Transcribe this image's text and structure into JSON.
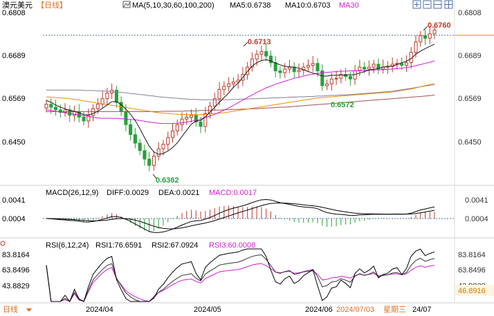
{
  "header": {
    "symbol": "澳元美元",
    "period": "【日线】",
    "ma_label": "MA(5,10,30,60,100,200)",
    "ma5": "MA5:0.6738",
    "ma10": "MA10:0.6703",
    "ma30": "MA30"
  },
  "toolbar_icons": [
    "grid-plus-icon",
    "grid-minus-icon",
    "panel-icon",
    "grid-icon"
  ],
  "colors": {
    "up": "#c0392b",
    "down": "#27a13a",
    "ma5": "#000000",
    "ma10": "#1a1a1a",
    "ma30": "#d21cd2",
    "ma60": "#f08c00",
    "ma100": "#7f7fa0",
    "ma200": "#a05050",
    "dif": "#000000",
    "dea": "#000000",
    "macd": "#d21cd2",
    "rsi3": "#d21cd2"
  },
  "main_axis": {
    "labels": [
      "0.6808",
      "0.6689",
      "0.6569",
      "0.6450"
    ],
    "ylim": [
      0.6345,
      0.6815
    ]
  },
  "annotations": {
    "high": "0.6713",
    "low": "0.6362",
    "mid_low": "0.6572",
    "last": "0.6760"
  },
  "macd": {
    "label": "MACD(26,12,9)",
    "diff": "DIFF:0.0029",
    "dea": "DEA:0.0021",
    "macd": "MACD:0.0017",
    "axis": [
      "0.0041",
      "0.0004"
    ]
  },
  "rsi": {
    "label": "RSI(6,12,24)",
    "rsi1": "RSI1:76.6591",
    "rsi2": "RSI2:67.0924",
    "rsi3": "RSI3:60.0008",
    "axis": [
      "83.8164",
      "63.8496",
      "43.8829"
    ],
    "current": "46.8916"
  },
  "footer": {
    "period": "日线",
    "dates": [
      "2024/04",
      "2024/05",
      "2024/06",
      "24/07"
    ],
    "cursor_date": "2024/07/03",
    "weekday": "星期三"
  },
  "chart_data": {
    "type": "candlestick",
    "title": "澳元美元 日线",
    "series_close": [
      0.656,
      0.6552,
      0.6545,
      0.6538,
      0.6545,
      0.653,
      0.654,
      0.6525,
      0.6515,
      0.653,
      0.6548,
      0.656,
      0.6575,
      0.659,
      0.6598,
      0.6565,
      0.654,
      0.6505,
      0.6478,
      0.6455,
      0.6435,
      0.6412,
      0.6395,
      0.642,
      0.644,
      0.6452,
      0.647,
      0.6488,
      0.6505,
      0.652,
      0.6525,
      0.653,
      0.6512,
      0.65,
      0.6535,
      0.6555,
      0.6575,
      0.66,
      0.6608,
      0.6615,
      0.662,
      0.6625,
      0.664,
      0.666,
      0.6682,
      0.6695,
      0.6702,
      0.669,
      0.6672,
      0.665,
      0.6645,
      0.6655,
      0.666,
      0.6648,
      0.6652,
      0.666,
      0.6665,
      0.667,
      0.665,
      0.661,
      0.6615,
      0.6628,
      0.663,
      0.664,
      0.6635,
      0.6628,
      0.665,
      0.666,
      0.6655,
      0.666,
      0.6668,
      0.6655,
      0.666,
      0.6662,
      0.6668,
      0.667,
      0.6665,
      0.6672,
      0.67,
      0.6728,
      0.6745,
      0.6738,
      0.675,
      0.676
    ],
    "ma10": [
      0.657,
      0.6565,
      0.6558,
      0.6552,
      0.6548,
      0.6543,
      0.6541,
      0.6537,
      0.6532,
      0.6531,
      0.6535,
      0.6541,
      0.6549,
      0.6558,
      0.6567,
      0.6567,
      0.6559,
      0.6547,
      0.6533,
      0.6516,
      0.6494,
      0.647,
      0.6447,
      0.6431,
      0.6425,
      0.6427,
      0.6434,
      0.6443,
      0.6456,
      0.6473,
      0.649,
      0.6506,
      0.6515,
      0.6516,
      0.6526,
      0.6539,
      0.6552,
      0.6565,
      0.6578,
      0.659,
      0.6606,
      0.6617,
      0.6632,
      0.6648,
      0.6663,
      0.6672,
      0.6678,
      0.668,
      0.6677,
      0.6671,
      0.6666,
      0.6662,
      0.6661,
      0.666,
      0.6657,
      0.6653,
      0.6648,
      0.6644,
      0.6641,
      0.6636,
      0.6636,
      0.6638,
      0.6638,
      0.6639,
      0.6639,
      0.6639,
      0.664,
      0.6644,
      0.6648,
      0.6652,
      0.6654,
      0.6657,
      0.666,
      0.6662,
      0.6663,
      0.6667,
      0.6672,
      0.6676,
      0.6683,
      0.6695,
      0.6703,
      0.671,
      0.6716,
      0.6722
    ],
    "ma30": [
      0.6545,
      0.6543,
      0.6541,
      0.6539,
      0.6537,
      0.6535,
      0.6533,
      0.6531,
      0.6529,
      0.6527,
      0.6525,
      0.6523,
      0.6522,
      0.6522,
      0.6522,
      0.6522,
      0.6521,
      0.652,
      0.6519,
      0.6518,
      0.6516,
      0.6514,
      0.6512,
      0.651,
      0.6509,
      0.6508,
      0.6508,
      0.6508,
      0.6509,
      0.651,
      0.6512,
      0.6514,
      0.6517,
      0.652,
      0.6524,
      0.6528,
      0.6533,
      0.6538,
      0.6544,
      0.655,
      0.6557,
      0.6564,
      0.6571,
      0.6578,
      0.6585,
      0.6592,
      0.6598,
      0.6604,
      0.6609,
      0.6614,
      0.6618,
      0.6622,
      0.6626,
      0.663,
      0.6633,
      0.6636,
      0.6639,
      0.6641,
      0.6643,
      0.6645,
      0.6646,
      0.6647,
      0.6648,
      0.6649,
      0.6649,
      0.665,
      0.665,
      0.6651,
      0.6651,
      0.6652,
      0.6652,
      0.6653,
      0.6653,
      0.6654,
      0.6655,
      0.6656,
      0.6657,
      0.6659,
      0.6661,
      0.6664,
      0.6667,
      0.667,
      0.6673,
      0.6677
    ],
    "ma60": [
      0.658,
      0.6579,
      0.6578,
      0.6577,
      0.6576,
      0.6575,
      0.6573,
      0.6571,
      0.6569,
      0.6567,
      0.6565,
      0.6563,
      0.6561,
      0.6559,
      0.6557,
      0.6555,
      0.6553,
      0.6551,
      0.6549,
      0.6547,
      0.6545,
      0.6543,
      0.6541,
      0.6539,
      0.6537,
      0.6536,
      0.6535,
      0.6534,
      0.6533,
      0.6532,
      0.6532,
      0.6532,
      0.6532,
      0.6532,
      0.6533,
      0.6534,
      0.6535,
      0.6536,
      0.6537,
      0.6539,
      0.6541,
      0.6543,
      0.6545,
      0.6547,
      0.6549,
      0.6551,
      0.6553,
      0.6555,
      0.6557,
      0.6559,
      0.6561,
      0.6563,
      0.6565,
      0.6567,
      0.6569,
      0.6571,
      0.6573,
      0.6575,
      0.6577,
      0.6578,
      0.6579,
      0.658,
      0.6581,
      0.6582,
      0.6583,
      0.6584,
      0.6585,
      0.6586,
      0.6587,
      0.6588,
      0.6589,
      0.659,
      0.6591,
      0.6592,
      0.6593,
      0.6595,
      0.6597,
      0.6599,
      0.6601,
      0.6604,
      0.6607,
      0.661,
      0.6613,
      0.6616
    ],
    "ma100": [
      0.6598,
      0.6598,
      0.6598,
      0.6598,
      0.6598,
      0.6598,
      0.6598,
      0.6598,
      0.6597,
      0.6597,
      0.6597,
      0.6596,
      0.6596,
      0.6595,
      0.6594,
      0.6593,
      0.6592,
      0.6591,
      0.6589,
      0.6588,
      0.6586,
      0.6585,
      0.6583,
      0.6582,
      0.658,
      0.6579,
      0.6578,
      0.6577,
      0.6576,
      0.6575,
      0.6574,
      0.6573,
      0.6573,
      0.6572,
      0.6572,
      0.6572,
      0.6572,
      0.6572,
      0.6572,
      0.6572,
      0.6573,
      0.6573,
      0.6574,
      0.6574,
      0.6575,
      0.6575,
      0.6576,
      0.6576,
      0.6577,
      0.6577,
      0.6578,
      0.6578,
      0.6579,
      0.6579,
      0.658,
      0.658,
      0.6581,
      0.6581,
      0.6582,
      0.6582,
      0.6583,
      0.6584,
      0.6584,
      0.6585,
      0.6585,
      0.6586,
      0.6587,
      0.6588,
      0.6589,
      0.659,
      0.6591,
      0.6592,
      0.6593,
      0.6594,
      0.6595,
      0.6597,
      0.6599,
      0.6601,
      0.6603,
      0.6605,
      0.6607,
      0.6609,
      0.6611,
      0.6613
    ],
    "ma200": [
      0.654,
      0.654,
      0.654,
      0.654,
      0.654,
      0.654,
      0.654,
      0.654,
      0.654,
      0.654,
      0.654,
      0.654,
      0.654,
      0.654,
      0.654,
      0.654,
      0.654,
      0.654,
      0.654,
      0.654,
      0.654,
      0.654,
      0.654,
      0.654,
      0.654,
      0.6541,
      0.6541,
      0.6541,
      0.6541,
      0.6541,
      0.6542,
      0.6542,
      0.6542,
      0.6543,
      0.6543,
      0.6543,
      0.6544,
      0.6544,
      0.6545,
      0.6545,
      0.6546,
      0.6546,
      0.6547,
      0.6547,
      0.6548,
      0.6548,
      0.6549,
      0.655,
      0.655,
      0.6551,
      0.6552,
      0.6552,
      0.6553,
      0.6554,
      0.6555,
      0.6556,
      0.6557,
      0.6558,
      0.6559,
      0.656,
      0.6561,
      0.6562,
      0.6563,
      0.6564,
      0.6565,
      0.6566,
      0.6567,
      0.6568,
      0.6569,
      0.657,
      0.6571,
      0.6572,
      0.6573,
      0.6574,
      0.6575,
      0.6576,
      0.6577,
      0.6578,
      0.6579,
      0.658,
      0.6581,
      0.6582,
      0.6583,
      0.6585
    ]
  }
}
